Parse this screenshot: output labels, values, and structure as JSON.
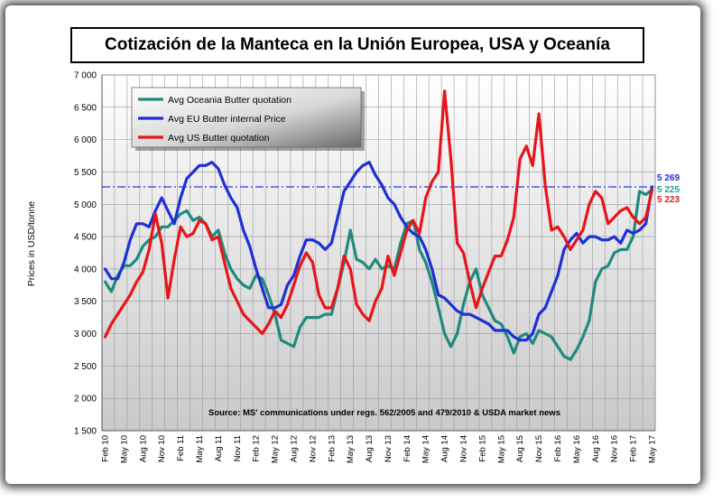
{
  "chart_data": {
    "type": "line",
    "title": "Cotización de la Manteca en la Unión Europea, USA y Oceanía",
    "ylabel": "Prices in USD/tonne",
    "xlabel": "",
    "ylim": [
      1500,
      7000
    ],
    "y_ticks": [
      "7 000",
      "6 500",
      "6 000",
      "5 500",
      "5 000",
      "4 500",
      "4 000",
      "3 500",
      "3 000",
      "2 500",
      "2 000",
      "1 500"
    ],
    "y_tick_values": [
      7000,
      6500,
      6000,
      5500,
      5000,
      4500,
      4000,
      3500,
      3000,
      2500,
      2000,
      1500
    ],
    "x_labels": [
      "Feb 10",
      "May 10",
      "Aug 10",
      "Nov 10",
      "Feb 11",
      "May 11",
      "Aug 11",
      "Nov 11",
      "Feb 12",
      "May 12",
      "Aug 12",
      "Nov 12",
      "Feb 13",
      "May 13",
      "Aug 13",
      "Nov 13",
      "Feb 14",
      "May 14",
      "Aug 14",
      "Nov 14",
      "Feb 15",
      "May 15",
      "Aug 15",
      "Nov 15",
      "Feb 16",
      "May 16",
      "Aug 16",
      "Nov 16",
      "Feb 17",
      "May 17"
    ],
    "x_label_index": [
      0,
      3,
      6,
      9,
      12,
      15,
      18,
      21,
      24,
      27,
      30,
      33,
      36,
      39,
      42,
      45,
      48,
      51,
      54,
      57,
      60,
      63,
      66,
      69,
      72,
      75,
      78,
      81,
      84,
      87
    ],
    "n_months": 88,
    "reference_line": {
      "value": 5269,
      "style": "dash-dot"
    },
    "end_labels": [
      {
        "text": "5 269",
        "color": "#1f2fd6"
      },
      {
        "text": "5 225",
        "color": "#1e9e8c"
      },
      {
        "text": "5 223",
        "color": "#e01b24"
      }
    ],
    "source_note": "Source: MS' communications under regs. 562/2005 and 479/2010 & USDA market news",
    "series": [
      {
        "name": "Avg Oceania Butter quotation",
        "color": "#1e8a7e",
        "points": [
          [
            0,
            3800
          ],
          [
            1,
            3650
          ],
          [
            2,
            3900
          ],
          [
            3,
            4050
          ],
          [
            4,
            4050
          ],
          [
            5,
            4150
          ],
          [
            6,
            4350
          ],
          [
            7,
            4450
          ],
          [
            8,
            4500
          ],
          [
            9,
            4650
          ],
          [
            10,
            4650
          ],
          [
            11,
            4750
          ],
          [
            12,
            4850
          ],
          [
            13,
            4900
          ],
          [
            14,
            4750
          ],
          [
            15,
            4800
          ],
          [
            16,
            4700
          ],
          [
            17,
            4500
          ],
          [
            18,
            4600
          ],
          [
            19,
            4250
          ],
          [
            20,
            4000
          ],
          [
            21,
            3850
          ],
          [
            22,
            3750
          ],
          [
            23,
            3700
          ],
          [
            24,
            3900
          ],
          [
            25,
            3850
          ],
          [
            26,
            3600
          ],
          [
            27,
            3300
          ],
          [
            28,
            2900
          ],
          [
            29,
            2850
          ],
          [
            30,
            2800
          ],
          [
            31,
            3100
          ],
          [
            32,
            3250
          ],
          [
            33,
            3250
          ],
          [
            34,
            3250
          ],
          [
            35,
            3300
          ],
          [
            36,
            3300
          ],
          [
            37,
            3700
          ],
          [
            38,
            4100
          ],
          [
            39,
            4600
          ],
          [
            40,
            4150
          ],
          [
            41,
            4100
          ],
          [
            42,
            4000
          ],
          [
            43,
            4150
          ],
          [
            44,
            4000
          ],
          [
            45,
            4050
          ],
          [
            46,
            4000
          ],
          [
            47,
            4400
          ],
          [
            48,
            4700
          ],
          [
            49,
            4750
          ],
          [
            50,
            4300
          ],
          [
            51,
            4100
          ],
          [
            52,
            3800
          ],
          [
            53,
            3400
          ],
          [
            54,
            3000
          ],
          [
            55,
            2800
          ],
          [
            56,
            3000
          ],
          [
            57,
            3450
          ],
          [
            58,
            3800
          ],
          [
            59,
            4000
          ],
          [
            60,
            3600
          ],
          [
            61,
            3400
          ],
          [
            62,
            3200
          ],
          [
            63,
            3150
          ],
          [
            64,
            2950
          ],
          [
            65,
            2700
          ],
          [
            66,
            2950
          ],
          [
            67,
            3000
          ],
          [
            68,
            2850
          ],
          [
            69,
            3050
          ],
          [
            70,
            3000
          ],
          [
            71,
            2950
          ],
          [
            72,
            2800
          ],
          [
            73,
            2650
          ],
          [
            74,
            2600
          ],
          [
            75,
            2750
          ],
          [
            76,
            2950
          ],
          [
            77,
            3200
          ],
          [
            78,
            3800
          ],
          [
            79,
            4000
          ],
          [
            80,
            4050
          ],
          [
            81,
            4250
          ],
          [
            82,
            4300
          ],
          [
            83,
            4300
          ],
          [
            84,
            4500
          ],
          [
            85,
            5200
          ],
          [
            86,
            5150
          ],
          [
            87,
            5225
          ]
        ]
      },
      {
        "name": "Avg EU Butter internal Price",
        "color": "#1f2fd6",
        "points": [
          [
            0,
            4000
          ],
          [
            1,
            3850
          ],
          [
            2,
            3850
          ],
          [
            3,
            4100
          ],
          [
            4,
            4450
          ],
          [
            5,
            4700
          ],
          [
            6,
            4700
          ],
          [
            7,
            4650
          ],
          [
            8,
            4900
          ],
          [
            9,
            5100
          ],
          [
            10,
            4900
          ],
          [
            11,
            4700
          ],
          [
            12,
            5100
          ],
          [
            13,
            5400
          ],
          [
            14,
            5500
          ],
          [
            15,
            5600
          ],
          [
            16,
            5600
          ],
          [
            17,
            5650
          ],
          [
            18,
            5550
          ],
          [
            19,
            5300
          ],
          [
            20,
            5100
          ],
          [
            21,
            4950
          ],
          [
            22,
            4600
          ],
          [
            23,
            4350
          ],
          [
            24,
            4000
          ],
          [
            25,
            3700
          ],
          [
            26,
            3400
          ],
          [
            27,
            3400
          ],
          [
            28,
            3450
          ],
          [
            29,
            3750
          ],
          [
            30,
            3900
          ],
          [
            31,
            4200
          ],
          [
            32,
            4450
          ],
          [
            33,
            4450
          ],
          [
            34,
            4400
          ],
          [
            35,
            4300
          ],
          [
            36,
            4400
          ],
          [
            37,
            4800
          ],
          [
            38,
            5200
          ],
          [
            39,
            5350
          ],
          [
            40,
            5500
          ],
          [
            41,
            5600
          ],
          [
            42,
            5650
          ],
          [
            43,
            5450
          ],
          [
            44,
            5300
          ],
          [
            45,
            5100
          ],
          [
            46,
            5000
          ],
          [
            47,
            4800
          ],
          [
            48,
            4650
          ],
          [
            49,
            4550
          ],
          [
            50,
            4500
          ],
          [
            51,
            4300
          ],
          [
            52,
            4000
          ],
          [
            53,
            3600
          ],
          [
            54,
            3550
          ],
          [
            55,
            3450
          ],
          [
            56,
            3350
          ],
          [
            57,
            3300
          ],
          [
            58,
            3300
          ],
          [
            59,
            3250
          ],
          [
            60,
            3200
          ],
          [
            61,
            3150
          ],
          [
            62,
            3050
          ],
          [
            63,
            3050
          ],
          [
            64,
            3050
          ],
          [
            65,
            2950
          ],
          [
            66,
            2900
          ],
          [
            67,
            2900
          ],
          [
            68,
            3000
          ],
          [
            69,
            3300
          ],
          [
            70,
            3400
          ],
          [
            71,
            3650
          ],
          [
            72,
            3900
          ],
          [
            73,
            4300
          ],
          [
            74,
            4450
          ],
          [
            75,
            4550
          ],
          [
            76,
            4400
          ],
          [
            77,
            4500
          ],
          [
            78,
            4500
          ],
          [
            79,
            4450
          ],
          [
            80,
            4450
          ],
          [
            81,
            4500
          ],
          [
            82,
            4400
          ],
          [
            83,
            4600
          ],
          [
            84,
            4550
          ],
          [
            85,
            4600
          ],
          [
            86,
            4700
          ],
          [
            87,
            5269
          ]
        ]
      },
      {
        "name": "Avg US Butter quotation",
        "color": "#e8141a",
        "points": [
          [
            0,
            2950
          ],
          [
            1,
            3150
          ],
          [
            2,
            3300
          ],
          [
            3,
            3450
          ],
          [
            4,
            3600
          ],
          [
            5,
            3800
          ],
          [
            6,
            3950
          ],
          [
            7,
            4300
          ],
          [
            8,
            4850
          ],
          [
            9,
            4400
          ],
          [
            10,
            3550
          ],
          [
            11,
            4150
          ],
          [
            12,
            4650
          ],
          [
            13,
            4500
          ],
          [
            14,
            4550
          ],
          [
            15,
            4750
          ],
          [
            16,
            4700
          ],
          [
            17,
            4450
          ],
          [
            18,
            4500
          ],
          [
            19,
            4100
          ],
          [
            20,
            3700
          ],
          [
            21,
            3500
          ],
          [
            22,
            3300
          ],
          [
            23,
            3200
          ],
          [
            24,
            3100
          ],
          [
            25,
            3000
          ],
          [
            26,
            3150
          ],
          [
            27,
            3350
          ],
          [
            28,
            3250
          ],
          [
            29,
            3450
          ],
          [
            30,
            3750
          ],
          [
            31,
            4050
          ],
          [
            32,
            4250
          ],
          [
            33,
            4100
          ],
          [
            34,
            3600
          ],
          [
            35,
            3400
          ],
          [
            36,
            3400
          ],
          [
            37,
            3700
          ],
          [
            38,
            4200
          ],
          [
            39,
            4000
          ],
          [
            40,
            3450
          ],
          [
            41,
            3300
          ],
          [
            42,
            3200
          ],
          [
            43,
            3500
          ],
          [
            44,
            3700
          ],
          [
            45,
            4200
          ],
          [
            46,
            3900
          ],
          [
            47,
            4250
          ],
          [
            48,
            4600
          ],
          [
            49,
            4750
          ],
          [
            50,
            4550
          ],
          [
            51,
            5100
          ],
          [
            52,
            5350
          ],
          [
            53,
            5500
          ],
          [
            54,
            6750
          ],
          [
            55,
            5700
          ],
          [
            56,
            4400
          ],
          [
            57,
            4250
          ],
          [
            58,
            3800
          ],
          [
            59,
            3400
          ],
          [
            60,
            3700
          ],
          [
            61,
            3950
          ],
          [
            62,
            4200
          ],
          [
            63,
            4200
          ],
          [
            64,
            4450
          ],
          [
            65,
            4800
          ],
          [
            66,
            5700
          ],
          [
            67,
            5900
          ],
          [
            68,
            5600
          ],
          [
            69,
            6400
          ],
          [
            70,
            5300
          ],
          [
            71,
            4600
          ],
          [
            72,
            4650
          ],
          [
            73,
            4500
          ],
          [
            74,
            4300
          ],
          [
            75,
            4450
          ],
          [
            76,
            4600
          ],
          [
            77,
            5000
          ],
          [
            78,
            5200
          ],
          [
            79,
            5100
          ],
          [
            80,
            4700
          ],
          [
            81,
            4800
          ],
          [
            82,
            4900
          ],
          [
            83,
            4950
          ],
          [
            84,
            4800
          ],
          [
            85,
            4700
          ],
          [
            86,
            4800
          ],
          [
            87,
            5223
          ]
        ]
      }
    ]
  }
}
